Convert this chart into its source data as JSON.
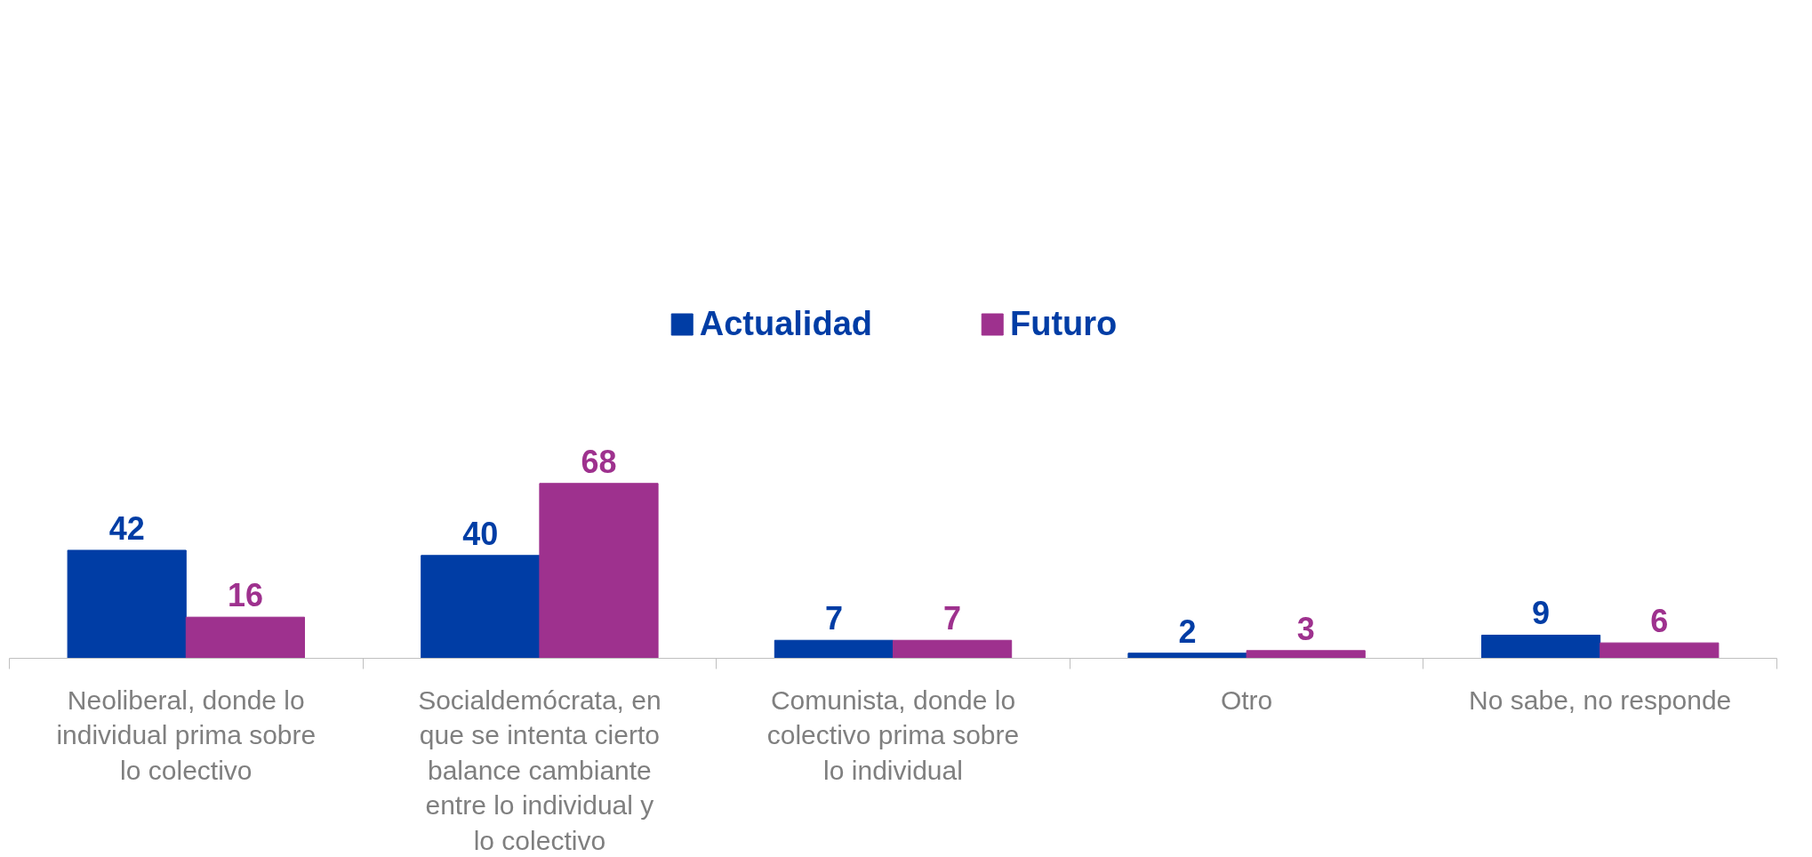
{
  "chart_data": {
    "type": "bar",
    "categories": [
      "Neoliberal, donde lo individual prima sobre lo colectivo",
      "Socialdemócrata, en que se intenta cierto balance cambiante entre lo individual y lo colectivo",
      "Comunista, donde lo colectivo prima sobre lo individual",
      "Otro",
      "No sabe, no responde"
    ],
    "series": [
      {
        "name": "Actualidad",
        "color": "#003da5",
        "values": [
          42,
          40,
          7,
          2,
          9
        ]
      },
      {
        "name": "Futuro",
        "color": "#9e318e",
        "values": [
          16,
          68,
          7,
          3,
          6
        ]
      }
    ],
    "data_labels": true,
    "legend": "top",
    "grid": false
  }
}
